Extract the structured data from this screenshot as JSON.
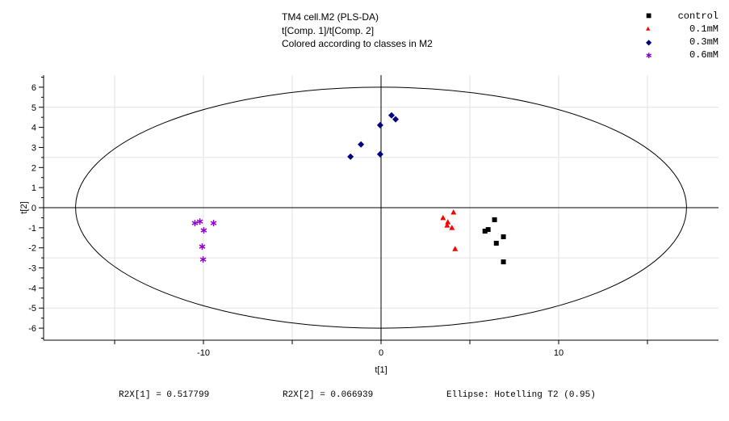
{
  "chart_data": {
    "type": "scatter",
    "title": [
      "TM4 cell.M2 (PLS-DA)",
      "t[Comp. 1]/t[Comp. 2]",
      "Colored according to classes in M2"
    ],
    "xlabel": "t[1]",
    "ylabel": "t[2]",
    "xlim": [
      -19,
      19
    ],
    "ylim": [
      -6.6,
      6.6
    ],
    "xticks": [
      -10,
      0,
      10
    ],
    "yticks": [
      6,
      5,
      4,
      3,
      2,
      1,
      0,
      -1,
      -2,
      -3,
      -4,
      -5,
      -6
    ],
    "grid": true,
    "legend_position": "top-right",
    "ellipse": {
      "label": "Hotelling T2 (0.95)",
      "rx": 17.2,
      "ry": 6
    },
    "series": [
      {
        "name": "control",
        "color": "#000000",
        "marker": "square",
        "points": [
          [
            6.39,
            -0.6
          ],
          [
            5.85,
            -1.17
          ],
          [
            6.03,
            -1.09
          ],
          [
            6.89,
            -1.45
          ],
          [
            6.49,
            -1.77
          ],
          [
            6.89,
            -2.7
          ]
        ]
      },
      {
        "name": "0.1mM",
        "color": "#ff0000",
        "marker": "triangle",
        "points": [
          [
            4.08,
            -0.24
          ],
          [
            3.49,
            -0.52
          ],
          [
            3.76,
            -0.73
          ],
          [
            3.72,
            -0.89
          ],
          [
            3.99,
            -1.01
          ],
          [
            4.17,
            -2.06
          ]
        ]
      },
      {
        "name": "0.3mM",
        "color": "#000080",
        "marker": "diamond",
        "points": [
          [
            -1.72,
            2.54
          ],
          [
            -1.13,
            3.15
          ],
          [
            -0.05,
            4.11
          ],
          [
            -0.05,
            2.66
          ],
          [
            0.59,
            4.6
          ],
          [
            0.82,
            4.4
          ]
        ]
      },
      {
        "name": "0.6mM",
        "color": "#9400d3",
        "marker": "star",
        "points": [
          [
            -10.48,
            -0.77
          ],
          [
            -10.2,
            -0.69
          ],
          [
            -9.43,
            -0.77
          ],
          [
            -9.98,
            -1.13
          ],
          [
            -10.07,
            -1.94
          ],
          [
            -10.02,
            -2.58
          ]
        ]
      }
    ],
    "footer": [
      "R2X[1] = 0.517799",
      "R2X[2] = 0.066939",
      "Ellipse: Hotelling T2 (0.95)"
    ]
  }
}
